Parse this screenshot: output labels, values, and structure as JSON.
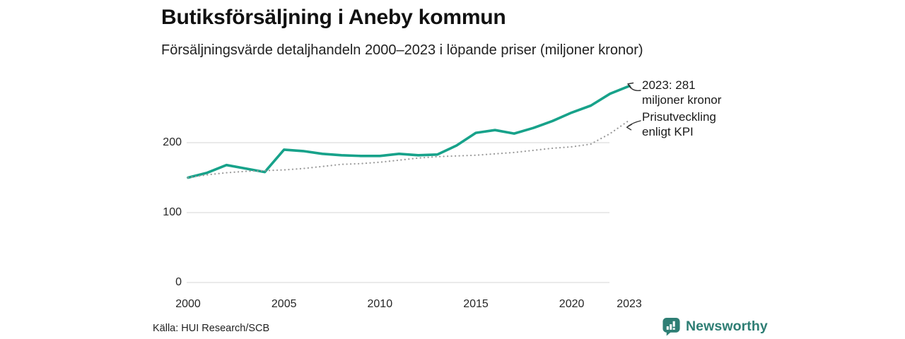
{
  "header": {
    "title": "Butiksförsäljning i Aneby kommun",
    "subtitle": "Försäljningsvärde detaljhandeln 2000–2023 i löpande priser (miljoner kronor)"
  },
  "chart_data": {
    "type": "line",
    "title": "Butiksförsäljning i Aneby kommun",
    "subtitle": "Försäljningsvärde detaljhandeln 2000–2023 i löpande priser (miljoner kronor)",
    "x": [
      2000,
      2001,
      2002,
      2003,
      2004,
      2005,
      2006,
      2007,
      2008,
      2009,
      2010,
      2011,
      2012,
      2013,
      2014,
      2015,
      2016,
      2017,
      2018,
      2019,
      2020,
      2021,
      2022,
      2023
    ],
    "series": [
      {
        "name": "Butiksförsäljning i löpande priser (miljoner kronor)",
        "style": "solid",
        "color": "#17a28a",
        "values": [
          150,
          157,
          168,
          163,
          158,
          190,
          188,
          184,
          182,
          181,
          181,
          184,
          182,
          183,
          196,
          214,
          218,
          213,
          221,
          231,
          243,
          253,
          270,
          281
        ]
      },
      {
        "name": "Prisutveckling enligt KPI",
        "style": "dotted",
        "color": "#9b9b9b",
        "values": [
          150,
          154,
          157,
          159,
          160,
          161,
          163,
          166,
          169,
          170,
          172,
          175,
          178,
          180,
          181,
          182,
          184,
          186,
          189,
          192,
          194,
          198,
          213,
          232
        ]
      }
    ],
    "ylabel": "miljoner kronor",
    "ylim": [
      0,
      290
    ],
    "yticks": [
      0,
      100,
      200
    ],
    "xticks": [
      2000,
      2005,
      2010,
      2015,
      2020,
      2023
    ],
    "grid": "horizontal",
    "legend_position": "annotations-right",
    "annotations": [
      {
        "target": "sales-line-end-2023",
        "label": "2023: 281\nmiljoner kronor"
      },
      {
        "target": "kpi-line-end",
        "label": "Prisutveckling\nenligt KPI"
      }
    ]
  },
  "footer": {
    "source": "Källa: HUI Research/SCB"
  },
  "logo": {
    "name": "Newsworthy",
    "color": "#2e7e74"
  }
}
